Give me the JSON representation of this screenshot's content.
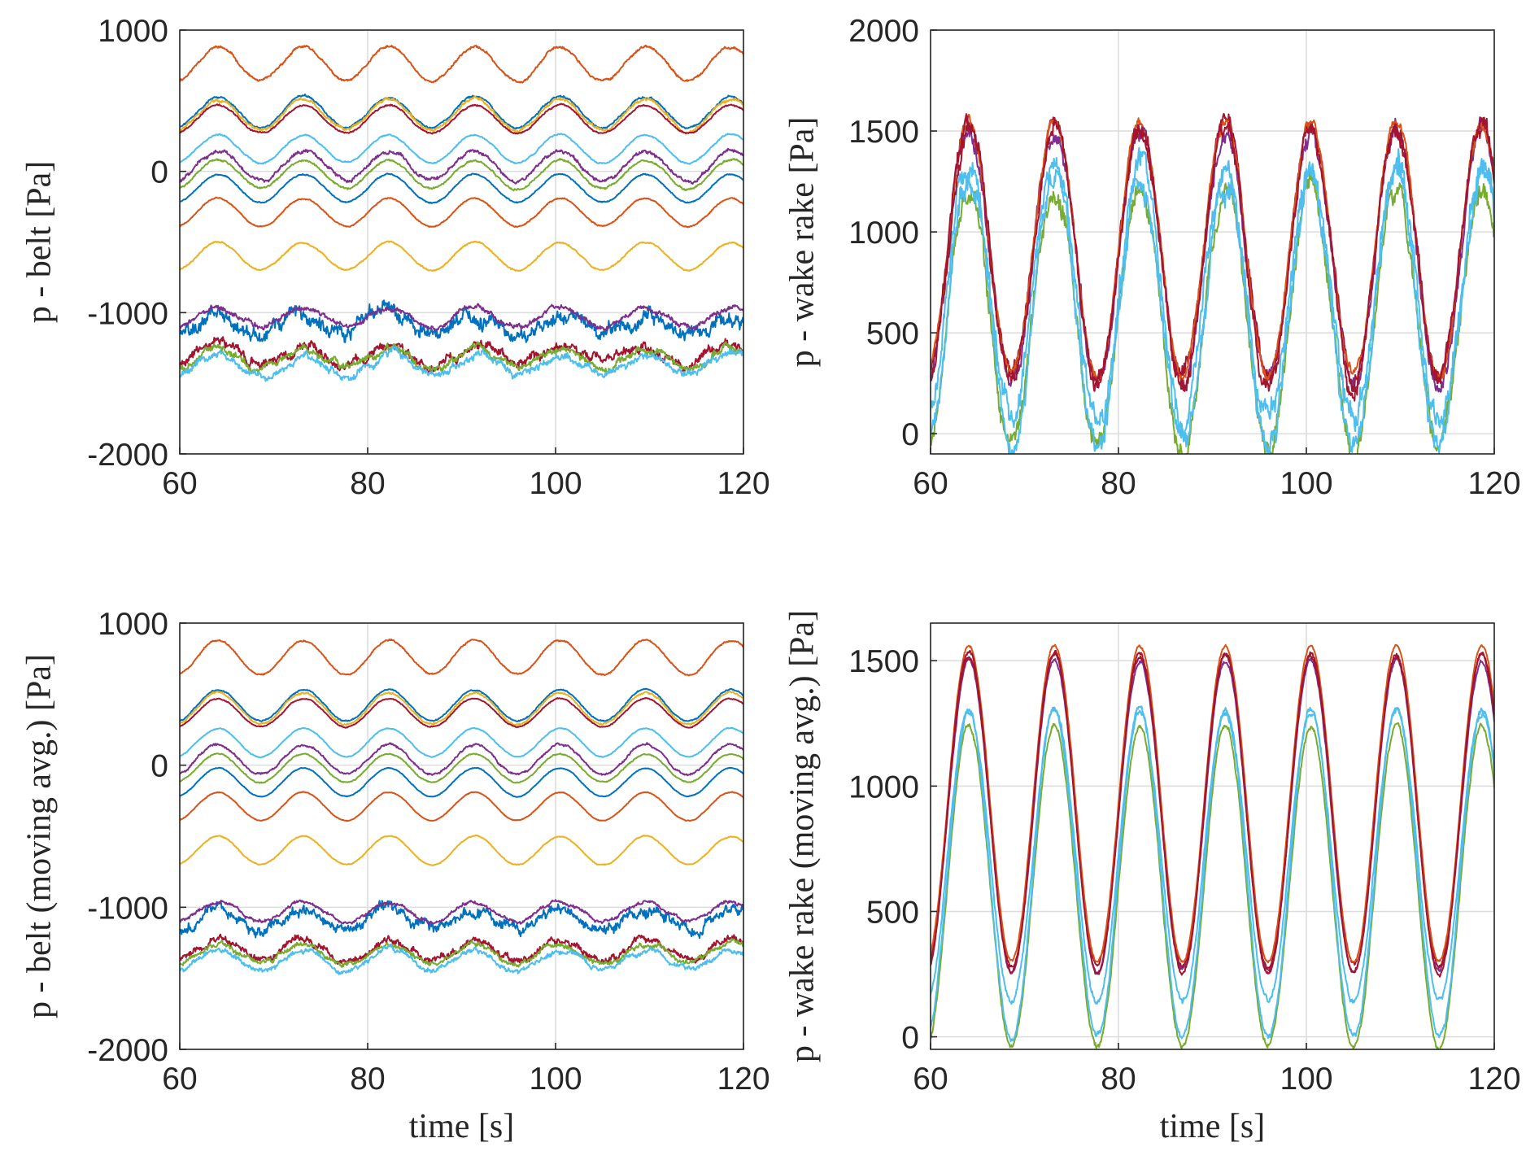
{
  "chart_data": [
    {
      "type": "line",
      "panel": "top-left",
      "title": "",
      "xlabel": "",
      "ylabel": "p - belt [Pa]",
      "xlim": [
        60,
        120
      ],
      "ylim": [
        -2000,
        1000
      ],
      "xticks": [
        "60",
        "80",
        "100",
        "120"
      ],
      "yticks": [
        "-2000",
        "-1000",
        "0",
        "1000"
      ],
      "grid": true,
      "period_s": 9.1,
      "series": [
        {
          "color": "#D95319",
          "mean": 760,
          "amplitude": 120,
          "noise": 10
        },
        {
          "color": "#0072BD",
          "mean": 420,
          "amplitude": 110,
          "noise": 8
        },
        {
          "color": "#EDB120",
          "mean": 400,
          "amplitude": 110,
          "noise": 12
        },
        {
          "color": "#A2142F",
          "mean": 370,
          "amplitude": 100,
          "noise": 6
        },
        {
          "color": "#4DBEEE",
          "mean": 160,
          "amplitude": 100,
          "noise": 6
        },
        {
          "color": "#7E2F8E",
          "mean": 40,
          "amplitude": 105,
          "noise": 15
        },
        {
          "color": "#77AC30",
          "mean": -20,
          "amplitude": 100,
          "noise": 8
        },
        {
          "color": "#0072BD",
          "mean": -120,
          "amplitude": 100,
          "noise": 5
        },
        {
          "color": "#D95319",
          "mean": -290,
          "amplitude": 100,
          "noise": 5
        },
        {
          "color": "#EDB120",
          "mean": -600,
          "amplitude": 100,
          "noise": 6
        },
        {
          "color": "#0072BD",
          "mean": -1080,
          "amplitude": 70,
          "noise": 60
        },
        {
          "color": "#7E2F8E",
          "mean": -1030,
          "amplitude": 70,
          "noise": 20
        },
        {
          "color": "#A2142F",
          "mean": -1300,
          "amplitude": 70,
          "noise": 40
        },
        {
          "color": "#77AC30",
          "mean": -1330,
          "amplitude": 70,
          "noise": 30
        },
        {
          "color": "#4DBEEE",
          "mean": -1370,
          "amplitude": 70,
          "noise": 30
        }
      ]
    },
    {
      "type": "line",
      "panel": "top-right",
      "title": "",
      "xlabel": "",
      "ylabel": "p - wake rake [Pa]",
      "xlim": [
        60,
        120
      ],
      "ylim": [
        -100,
        2000
      ],
      "xticks": [
        "60",
        "80",
        "100",
        "120"
      ],
      "yticks": [
        "0",
        "500",
        "1000",
        "1500",
        "2000"
      ],
      "grid": true,
      "period_s": 9.1,
      "series": [
        {
          "color": "#77AC30",
          "mean": 580,
          "amplitude": 640,
          "noise": 60
        },
        {
          "color": "#4DBEEE",
          "mean": 620,
          "amplitude": 660,
          "noise": 70
        },
        {
          "color": "#4DBEEE",
          "mean": 700,
          "amplitude": 640,
          "noise": 70
        },
        {
          "color": "#7E2F8E",
          "mean": 880,
          "amplitude": 620,
          "noise": 50
        },
        {
          "color": "#A2142F",
          "mean": 900,
          "amplitude": 620,
          "noise": 45
        },
        {
          "color": "#D95319",
          "mean": 920,
          "amplitude": 630,
          "noise": 30
        },
        {
          "color": "#A2142F",
          "mean": 880,
          "amplitude": 640,
          "noise": 55
        }
      ]
    },
    {
      "type": "line",
      "panel": "bottom-left",
      "title": "",
      "xlabel": "time [s]",
      "ylabel": "p - belt (moving avg.) [Pa]",
      "xlim": [
        60,
        120
      ],
      "ylim": [
        -2000,
        1000
      ],
      "xticks": [
        "60",
        "80",
        "100",
        "120"
      ],
      "yticks": [
        "-2000",
        "-1000",
        "0",
        "1000"
      ],
      "grid": true,
      "period_s": 9.1,
      "series": [
        {
          "color": "#D95319",
          "mean": 760,
          "amplitude": 120,
          "noise": 6
        },
        {
          "color": "#0072BD",
          "mean": 420,
          "amplitude": 110,
          "noise": 5
        },
        {
          "color": "#EDB120",
          "mean": 400,
          "amplitude": 110,
          "noise": 7
        },
        {
          "color": "#A2142F",
          "mean": 370,
          "amplitude": 100,
          "noise": 4
        },
        {
          "color": "#4DBEEE",
          "mean": 160,
          "amplitude": 100,
          "noise": 4
        },
        {
          "color": "#7E2F8E",
          "mean": 40,
          "amplitude": 105,
          "noise": 9
        },
        {
          "color": "#77AC30",
          "mean": -20,
          "amplitude": 100,
          "noise": 5
        },
        {
          "color": "#0072BD",
          "mean": -120,
          "amplitude": 100,
          "noise": 3
        },
        {
          "color": "#D95319",
          "mean": -290,
          "amplitude": 100,
          "noise": 3
        },
        {
          "color": "#EDB120",
          "mean": -600,
          "amplitude": 100,
          "noise": 4
        },
        {
          "color": "#0072BD",
          "mean": -1080,
          "amplitude": 70,
          "noise": 45
        },
        {
          "color": "#7E2F8E",
          "mean": -1030,
          "amplitude": 70,
          "noise": 14
        },
        {
          "color": "#A2142F",
          "mean": -1300,
          "amplitude": 70,
          "noise": 28
        },
        {
          "color": "#77AC30",
          "mean": -1330,
          "amplitude": 70,
          "noise": 20
        },
        {
          "color": "#4DBEEE",
          "mean": -1370,
          "amplitude": 70,
          "noise": 20
        }
      ]
    },
    {
      "type": "line",
      "panel": "bottom-right",
      "title": "",
      "xlabel": "time [s]",
      "ylabel": "p - wake rake (moving avg.) [Pa]",
      "xlim": [
        60,
        120
      ],
      "ylim": [
        -50,
        1650
      ],
      "xticks": [
        "60",
        "80",
        "100",
        "120"
      ],
      "yticks": [
        "0",
        "500",
        "1000",
        "1500"
      ],
      "grid": true,
      "period_s": 9.1,
      "series": [
        {
          "color": "#77AC30",
          "mean": 600,
          "amplitude": 640,
          "noise": 12
        },
        {
          "color": "#4DBEEE",
          "mean": 650,
          "amplitude": 650,
          "noise": 14
        },
        {
          "color": "#4DBEEE",
          "mean": 720,
          "amplitude": 580,
          "noise": 14
        },
        {
          "color": "#7E2F8E",
          "mean": 880,
          "amplitude": 620,
          "noise": 10
        },
        {
          "color": "#A2142F",
          "mean": 900,
          "amplitude": 620,
          "noise": 9
        },
        {
          "color": "#D95319",
          "mean": 930,
          "amplitude": 630,
          "noise": 6
        },
        {
          "color": "#A2142F",
          "mean": 890,
          "amplitude": 640,
          "noise": 10
        }
      ]
    }
  ]
}
